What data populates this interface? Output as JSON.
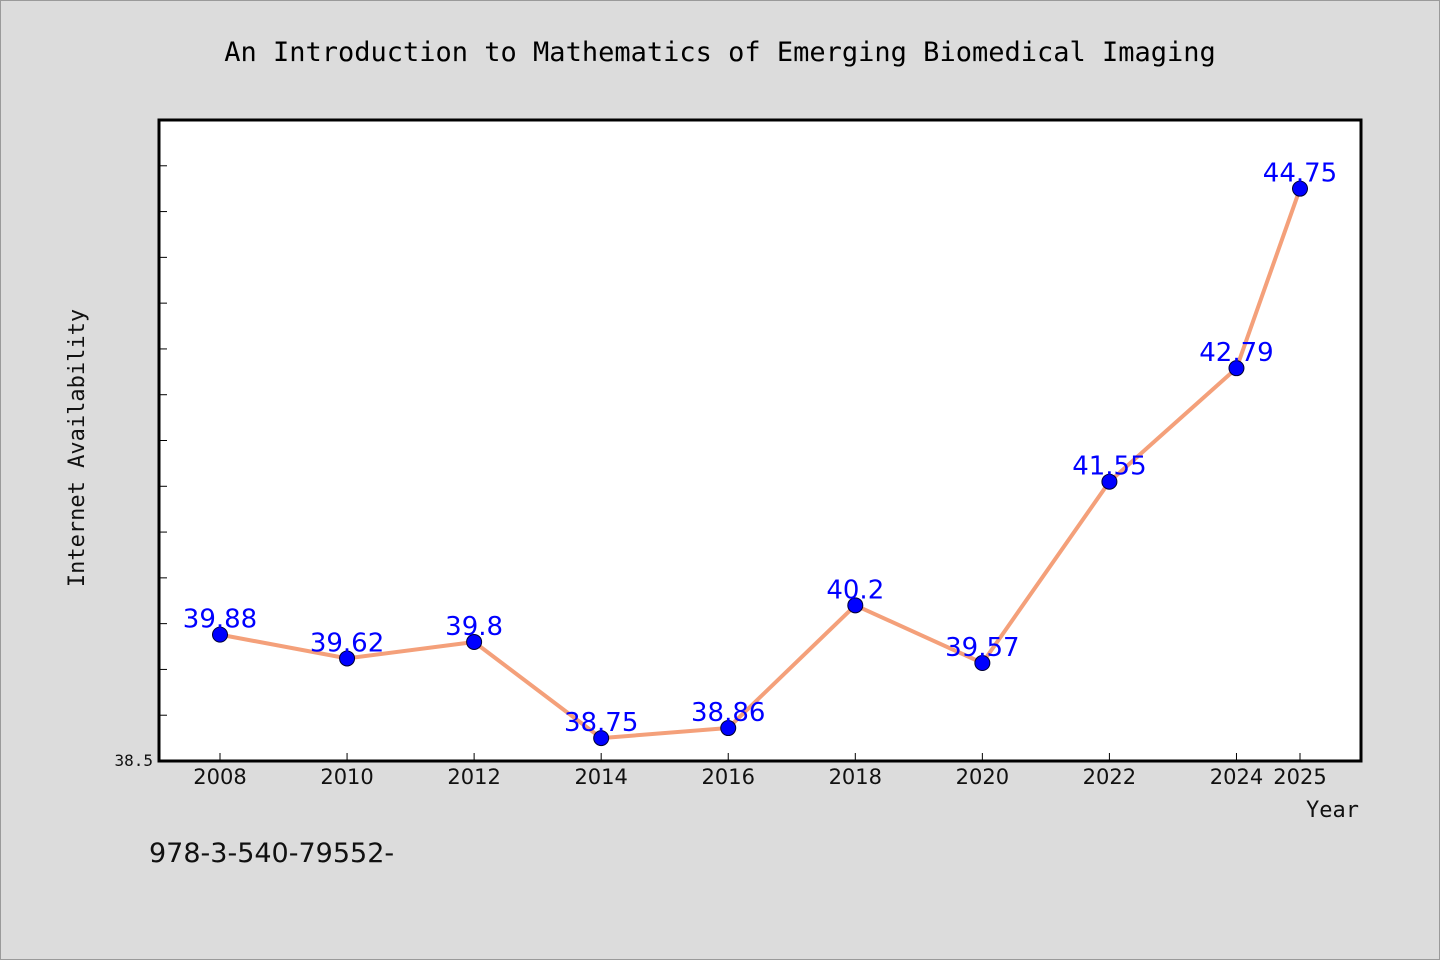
{
  "chart_data": {
    "type": "line",
    "title": "An Introduction to Mathematics of Emerging Biomedical Imaging",
    "xlabel": "Year",
    "ylabel": "Internet Availability",
    "x": [
      "2008",
      "2010",
      "2012",
      "2014",
      "2016",
      "2018",
      "2020",
      "2022",
      "2024",
      "2025"
    ],
    "series": [
      {
        "values": [
          39.88,
          39.62,
          39.8,
          38.75,
          38.86,
          40.2,
          39.57,
          41.55,
          42.79,
          44.75
        ],
        "labels": [
          "39.88",
          "39.62",
          "39.8",
          "38.75",
          "38.86",
          "40.2",
          "39.57",
          "41.55",
          "42.79",
          "44.75"
        ],
        "line_color": "#f4a07a",
        "marker_color": "#0000ff"
      }
    ],
    "ylim": [
      38.5,
      45.5
    ],
    "y_tick_label": "38.5",
    "grid": false,
    "legend": "none"
  },
  "footnote": "978-3-540-79552-"
}
